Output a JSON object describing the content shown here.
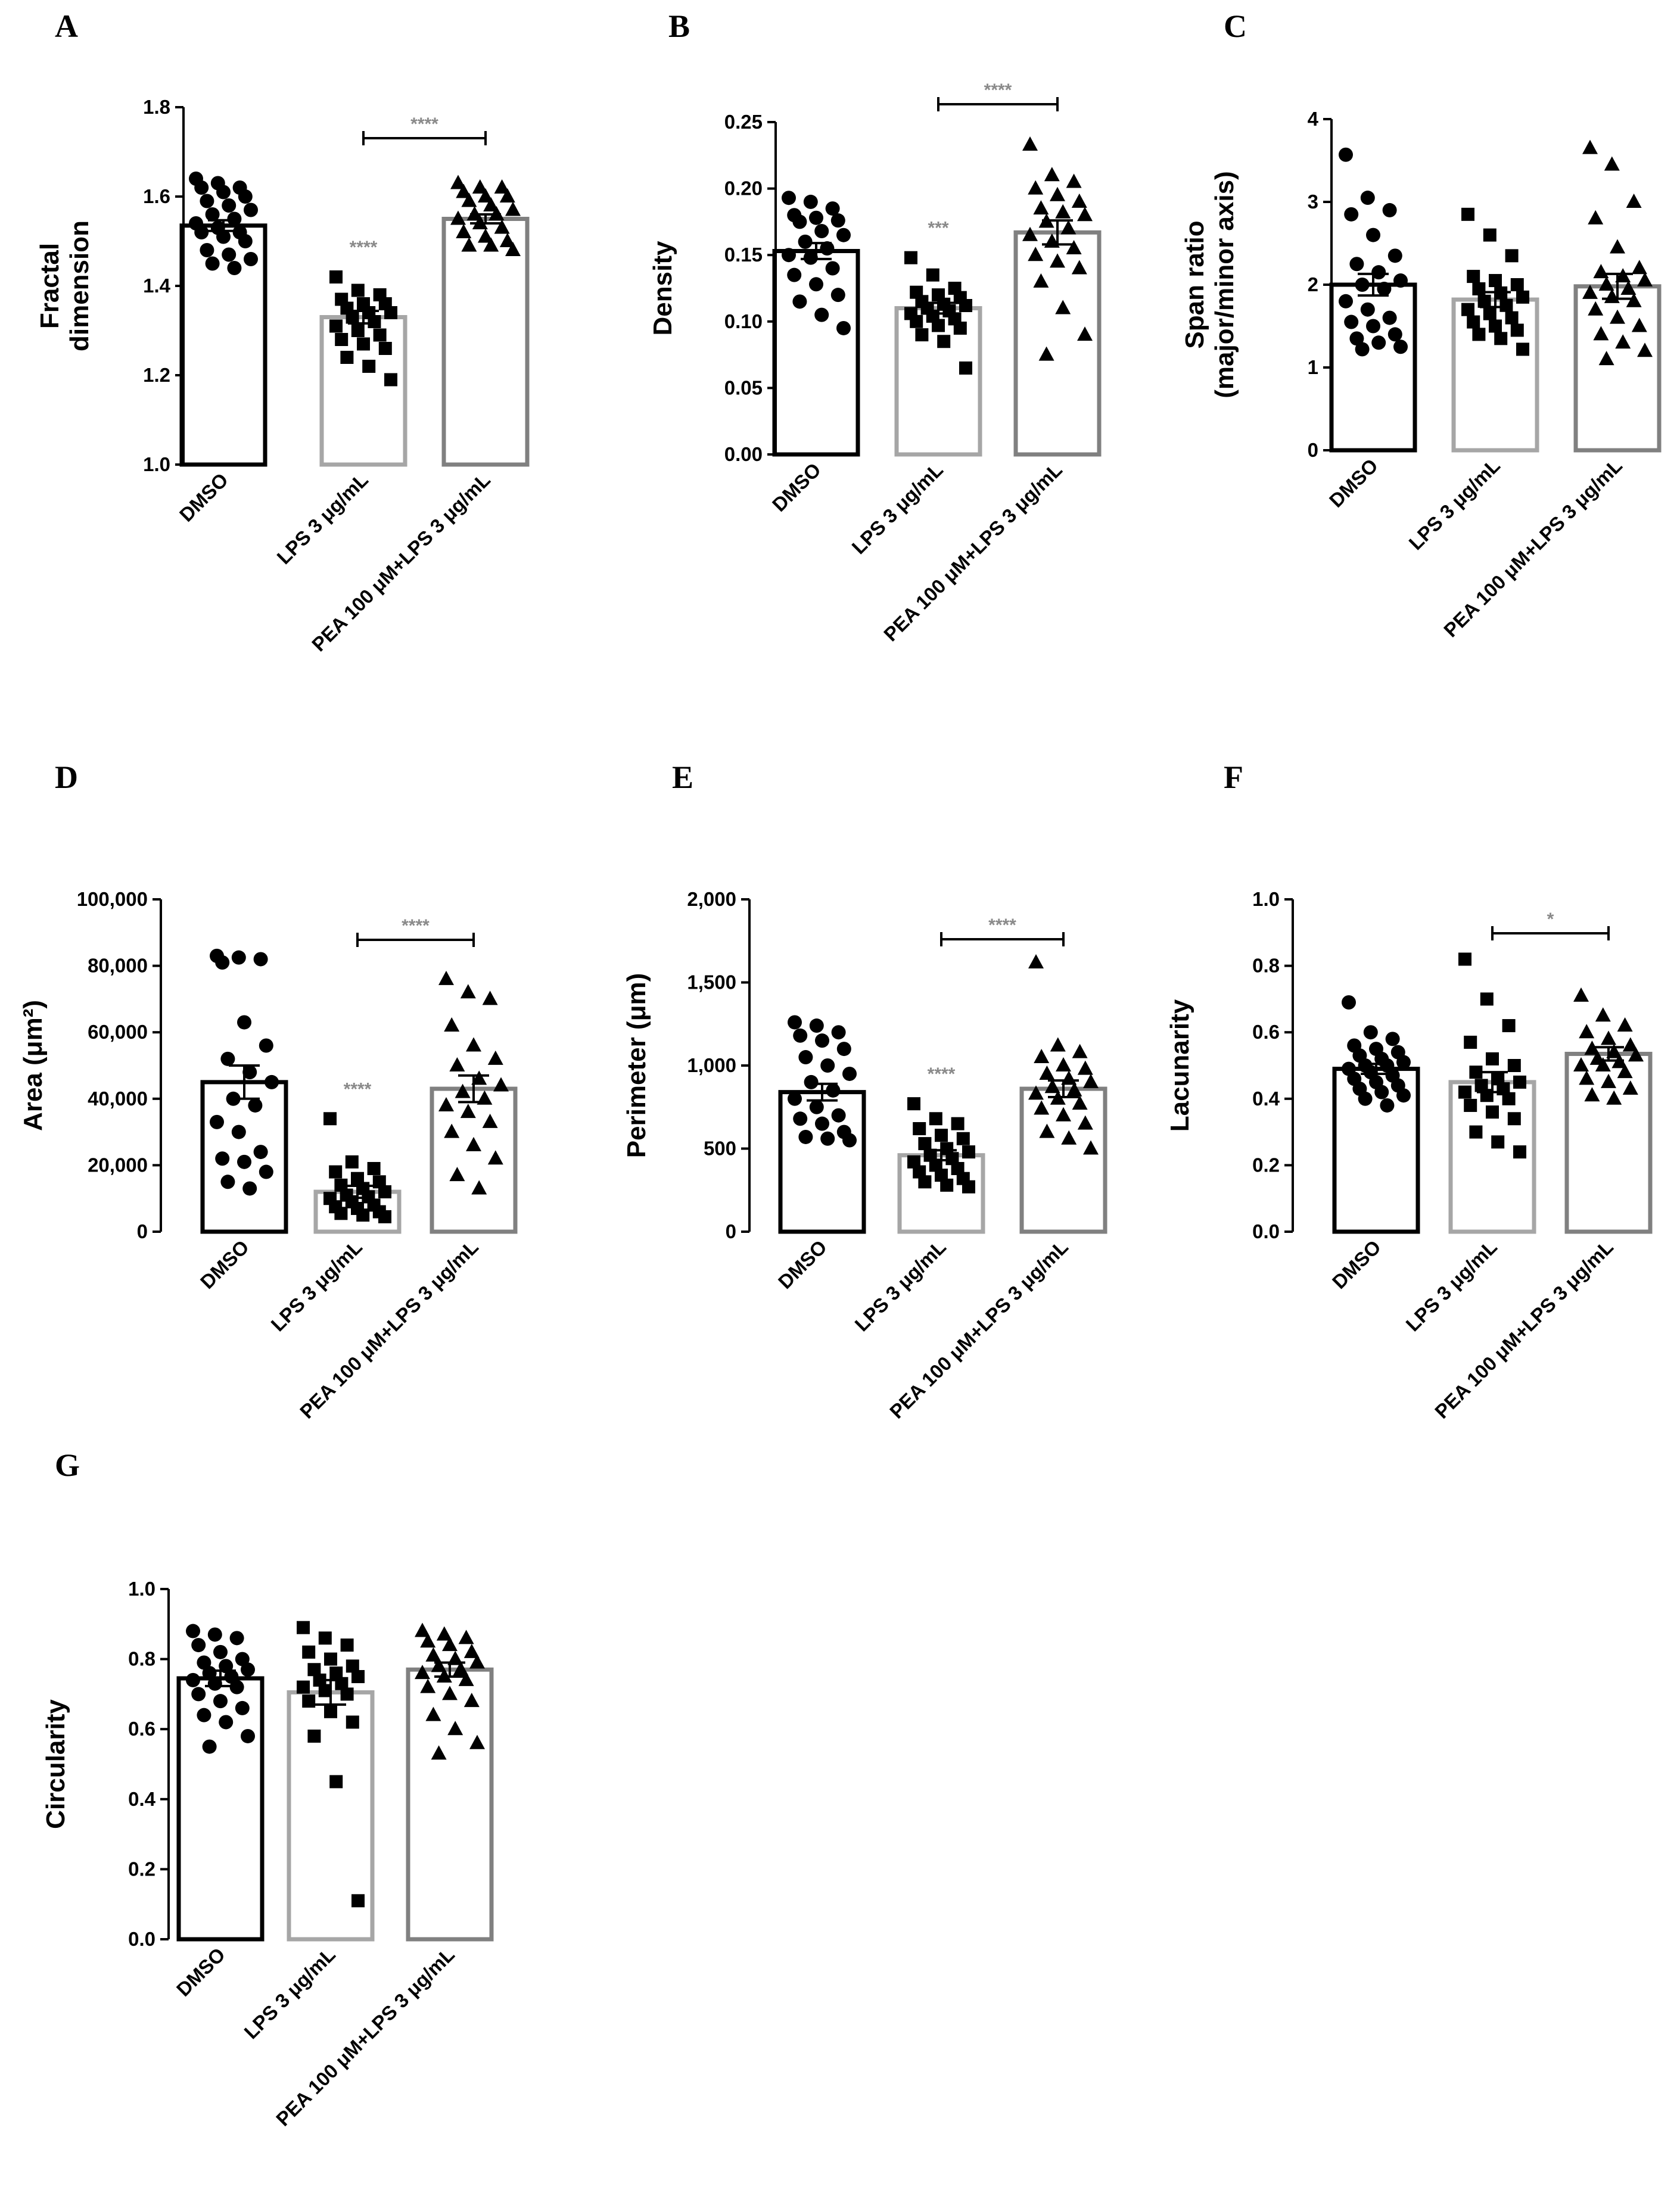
{
  "categories": [
    "DMSO",
    "LPS 3 μg/mL",
    "PEA 100 μM+LPS 3 μg/mL"
  ],
  "colors": {
    "bar_edges": [
      "#000000",
      "#a6a6a6",
      "#808080"
    ],
    "points": "#000000",
    "sig_gray": "#8a8a8a",
    "sig_black": "#000000"
  },
  "markers": [
    "circle",
    "square",
    "triangle"
  ],
  "chart_data": [
    {
      "panel": "A",
      "type": "bar",
      "ylabel_lines": [
        "Fractal",
        "dimension"
      ],
      "ylim": [
        1.0,
        1.8
      ],
      "yticks": [
        "1.0",
        "1.2",
        "1.4",
        "1.6",
        "1.8"
      ],
      "tick_values": [
        1.0,
        1.2,
        1.4,
        1.6,
        1.8
      ],
      "means": [
        1.535,
        1.33,
        1.55
      ],
      "sem": [
        0.012,
        0.014,
        0.01
      ],
      "points": [
        [
          1.64,
          1.63,
          1.62,
          1.62,
          1.61,
          1.6,
          1.59,
          1.58,
          1.57,
          1.56,
          1.55,
          1.54,
          1.53,
          1.52,
          1.52,
          1.51,
          1.5,
          1.48,
          1.47,
          1.46,
          1.45,
          1.44
        ],
        [
          1.42,
          1.39,
          1.38,
          1.37,
          1.36,
          1.36,
          1.35,
          1.34,
          1.34,
          1.33,
          1.32,
          1.31,
          1.3,
          1.29,
          1.28,
          1.27,
          1.26,
          1.24,
          1.22,
          1.19
        ],
        [
          1.63,
          1.62,
          1.62,
          1.61,
          1.6,
          1.6,
          1.59,
          1.58,
          1.57,
          1.56,
          1.56,
          1.55,
          1.54,
          1.53,
          1.52,
          1.51,
          1.5,
          1.49,
          1.49,
          1.48
        ]
      ],
      "significance_over_bar": [
        null,
        "****",
        null
      ],
      "bracket": {
        "from": 1,
        "to": 2,
        "label": "****"
      }
    },
    {
      "panel": "B",
      "type": "bar",
      "ylabel_lines": [
        "Density"
      ],
      "ylim": [
        0.0,
        0.25
      ],
      "yticks": [
        "0.00",
        "0.05",
        "0.10",
        "0.15",
        "0.20",
        "0.25"
      ],
      "tick_values": [
        0.0,
        0.05,
        0.1,
        0.15,
        0.2,
        0.25
      ],
      "means": [
        0.153,
        0.11,
        0.167
      ],
      "sem": [
        0.006,
        0.004,
        0.009
      ],
      "points": [
        [
          0.193,
          0.19,
          0.185,
          0.18,
          0.178,
          0.176,
          0.175,
          0.168,
          0.165,
          0.16,
          0.155,
          0.15,
          0.148,
          0.14,
          0.135,
          0.128,
          0.12,
          0.115,
          0.105,
          0.095
        ],
        [
          0.148,
          0.135,
          0.125,
          0.122,
          0.12,
          0.118,
          0.115,
          0.113,
          0.112,
          0.11,
          0.108,
          0.106,
          0.104,
          0.102,
          0.1,
          0.097,
          0.095,
          0.09,
          0.085,
          0.065
        ],
        [
          0.233,
          0.21,
          0.205,
          0.2,
          0.195,
          0.19,
          0.185,
          0.182,
          0.18,
          0.175,
          0.17,
          0.165,
          0.16,
          0.155,
          0.15,
          0.145,
          0.14,
          0.13,
          0.11,
          0.09,
          0.075
        ]
      ],
      "significance_over_bar": [
        null,
        "***",
        null
      ],
      "bracket": {
        "from": 1,
        "to": 2,
        "label": "****"
      }
    },
    {
      "panel": "C",
      "type": "bar",
      "ylabel_lines": [
        "Span ratio",
        "(major/minor axis)"
      ],
      "ylim": [
        0,
        4
      ],
      "yticks": [
        "0",
        "1",
        "2",
        "3",
        "4"
      ],
      "tick_values": [
        0,
        1,
        2,
        3,
        4
      ],
      "means": [
        2.0,
        1.82,
        1.98
      ],
      "sem": [
        0.13,
        0.09,
        0.15
      ],
      "points": [
        [
          3.57,
          3.05,
          2.9,
          2.85,
          2.6,
          2.35,
          2.25,
          2.15,
          2.05,
          2.0,
          1.95,
          1.8,
          1.7,
          1.6,
          1.55,
          1.5,
          1.4,
          1.35,
          1.3,
          1.25,
          1.22
        ],
        [
          2.85,
          2.6,
          2.35,
          2.1,
          2.05,
          2.0,
          1.95,
          1.9,
          1.85,
          1.8,
          1.75,
          1.7,
          1.65,
          1.6,
          1.55,
          1.5,
          1.45,
          1.4,
          1.35,
          1.22
        ],
        [
          3.65,
          3.45,
          3.0,
          2.8,
          2.45,
          2.2,
          2.15,
          2.1,
          2.05,
          2.0,
          1.95,
          1.9,
          1.85,
          1.8,
          1.7,
          1.6,
          1.5,
          1.4,
          1.3,
          1.2,
          1.1
        ]
      ],
      "significance_over_bar": [
        null,
        null,
        null
      ],
      "bracket": null
    },
    {
      "panel": "D",
      "type": "bar",
      "ylabel_lines": [
        "Area (μm²)"
      ],
      "ylim": [
        0,
        100000
      ],
      "yticks": [
        "0",
        "20,000",
        "40,000",
        "60,000",
        "80,000",
        "100,000"
      ],
      "tick_values": [
        0,
        20000,
        40000,
        60000,
        80000,
        100000
      ],
      "means": [
        45000,
        12000,
        43000
      ],
      "sem": [
        5000,
        1800,
        4000
      ],
      "points": [
        [
          83000,
          82500,
          82000,
          81000,
          63000,
          56000,
          52000,
          48000,
          45000,
          40000,
          38000,
          33000,
          30000,
          24000,
          22000,
          21000,
          18000,
          15000,
          13000
        ],
        [
          34000,
          21000,
          19000,
          18000,
          16000,
          15000,
          14000,
          13000,
          12000,
          11000,
          10500,
          10000,
          9000,
          8000,
          7500,
          7000,
          6000,
          5500,
          5000,
          4500
        ],
        [
          76000,
          72000,
          70000,
          62000,
          56000,
          52000,
          50000,
          46000,
          44000,
          42000,
          40000,
          38000,
          36000,
          33000,
          30000,
          26000,
          22000,
          17000,
          13000
        ]
      ],
      "significance_over_bar": [
        null,
        "****",
        null
      ],
      "bracket": {
        "from": 1,
        "to": 2,
        "label": "****"
      }
    },
    {
      "panel": "E",
      "type": "bar",
      "ylabel_lines": [
        "Perimeter (μm)"
      ],
      "ylim": [
        0,
        2000
      ],
      "yticks": [
        "0",
        "500",
        "1,000",
        "1,500",
        "2,000"
      ],
      "tick_values": [
        0,
        500,
        1000,
        1500,
        2000
      ],
      "means": [
        840,
        460,
        860
      ],
      "sem": [
        50,
        30,
        50
      ],
      "points": [
        [
          1260,
          1240,
          1200,
          1180,
          1150,
          1100,
          1050,
          1000,
          950,
          900,
          850,
          800,
          750,
          700,
          680,
          650,
          600,
          570,
          560,
          550
        ],
        [
          770,
          680,
          650,
          620,
          580,
          560,
          530,
          500,
          480,
          460,
          440,
          420,
          400,
          380,
          360,
          340,
          320,
          300,
          280,
          270
        ],
        [
          1620,
          1120,
          1080,
          1050,
          1000,
          980,
          950,
          920,
          900,
          870,
          850,
          830,
          800,
          770,
          740,
          700,
          650,
          600,
          560,
          500
        ]
      ],
      "significance_over_bar": [
        null,
        "****",
        null
      ],
      "bracket": {
        "from": 1,
        "to": 2,
        "label": "****"
      }
    },
    {
      "panel": "F",
      "type": "bar",
      "ylabel_lines": [
        "Lacunarity"
      ],
      "ylim": [
        0.0,
        1.0
      ],
      "yticks": [
        "0.0",
        "0.2",
        "0.4",
        "0.6",
        "0.8",
        "1.0"
      ],
      "tick_values": [
        0.0,
        0.2,
        0.4,
        0.6,
        0.8,
        1.0
      ],
      "means": [
        0.49,
        0.45,
        0.535
      ],
      "sem": [
        0.015,
        0.03,
        0.02
      ],
      "points": [
        [
          0.69,
          0.6,
          0.58,
          0.56,
          0.55,
          0.54,
          0.53,
          0.52,
          0.51,
          0.5,
          0.5,
          0.49,
          0.48,
          0.47,
          0.46,
          0.45,
          0.44,
          0.43,
          0.42,
          0.41,
          0.4,
          0.38
        ],
        [
          0.82,
          0.7,
          0.62,
          0.57,
          0.52,
          0.5,
          0.48,
          0.46,
          0.45,
          0.44,
          0.43,
          0.42,
          0.41,
          0.4,
          0.38,
          0.36,
          0.34,
          0.3,
          0.27,
          0.24
        ],
        [
          0.71,
          0.65,
          0.62,
          0.6,
          0.58,
          0.56,
          0.55,
          0.54,
          0.53,
          0.52,
          0.51,
          0.5,
          0.5,
          0.48,
          0.46,
          0.45,
          0.43,
          0.41,
          0.4
        ]
      ],
      "significance_over_bar": [
        null,
        null,
        null
      ],
      "bracket": {
        "from": 1,
        "to": 2,
        "label": "*"
      }
    },
    {
      "panel": "G",
      "type": "bar",
      "ylabel_lines": [
        "Circularity"
      ],
      "ylim": [
        0.0,
        1.0
      ],
      "yticks": [
        "0.0",
        "0.2",
        "0.4",
        "0.6",
        "0.8",
        "1.0"
      ],
      "tick_values": [
        0.0,
        0.2,
        0.4,
        0.6,
        0.8,
        1.0
      ],
      "means": [
        0.745,
        0.705,
        0.77
      ],
      "sem": [
        0.022,
        0.035,
        0.02
      ],
      "points": [
        [
          0.88,
          0.87,
          0.86,
          0.84,
          0.82,
          0.8,
          0.79,
          0.78,
          0.77,
          0.76,
          0.75,
          0.74,
          0.73,
          0.72,
          0.7,
          0.68,
          0.66,
          0.64,
          0.62,
          0.58,
          0.55
        ],
        [
          0.89,
          0.86,
          0.84,
          0.82,
          0.8,
          0.78,
          0.77,
          0.76,
          0.75,
          0.74,
          0.73,
          0.72,
          0.71,
          0.7,
          0.68,
          0.65,
          0.62,
          0.58,
          0.45,
          0.11
        ],
        [
          0.88,
          0.87,
          0.86,
          0.85,
          0.84,
          0.82,
          0.81,
          0.8,
          0.79,
          0.78,
          0.77,
          0.76,
          0.75,
          0.74,
          0.72,
          0.7,
          0.68,
          0.64,
          0.6,
          0.56,
          0.53
        ]
      ],
      "significance_over_bar": [
        null,
        null,
        null
      ],
      "bracket": null
    }
  ]
}
